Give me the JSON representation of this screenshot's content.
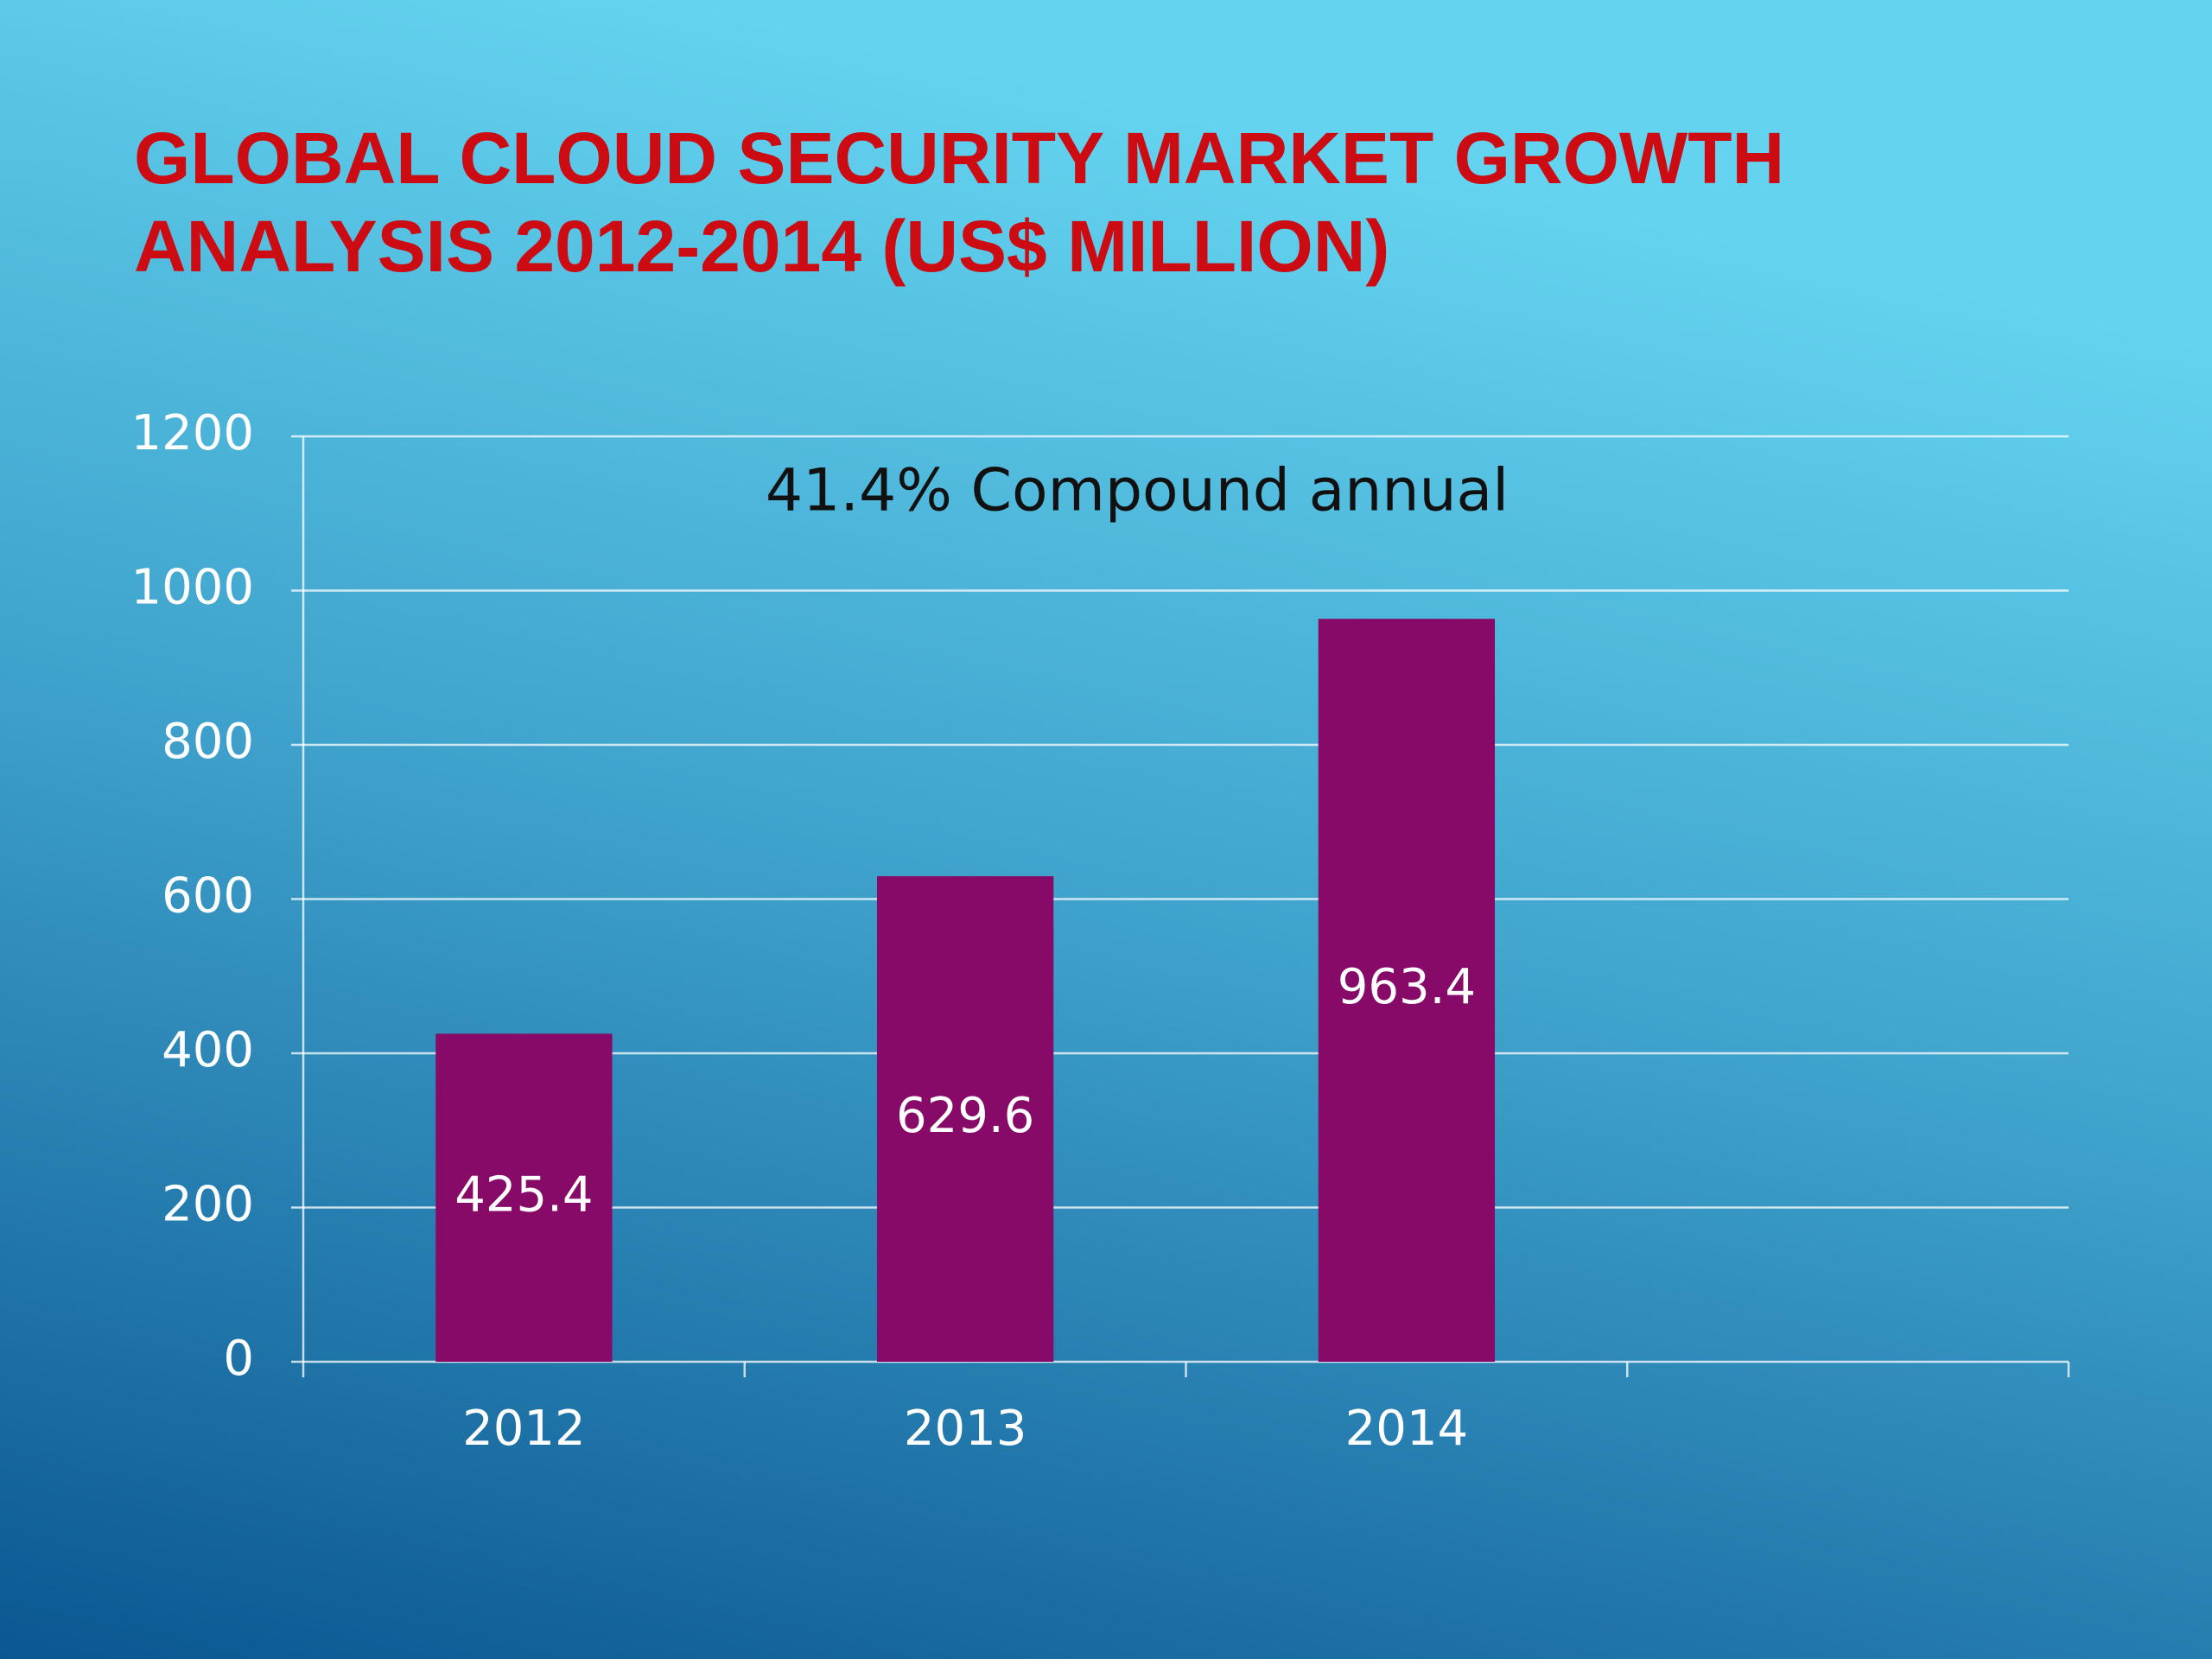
{
  "chart_data": {
    "type": "bar",
    "title": [
      "GLOBAL CLOUD SECURITY MARKET GROWTH",
      "ANALYSIS 2012-2014 (US$ MILLION)"
    ],
    "annotation": "41.4% Compound annual",
    "categories": [
      "2012",
      "2013",
      "2014",
      null
    ],
    "values": [
      425.4,
      629.6,
      963.4,
      null
    ],
    "color": "#870a68",
    "ylim": [
      0,
      1200
    ],
    "yticks": [
      0,
      200,
      400,
      600,
      800,
      1000,
      1200
    ],
    "grid": true
  }
}
